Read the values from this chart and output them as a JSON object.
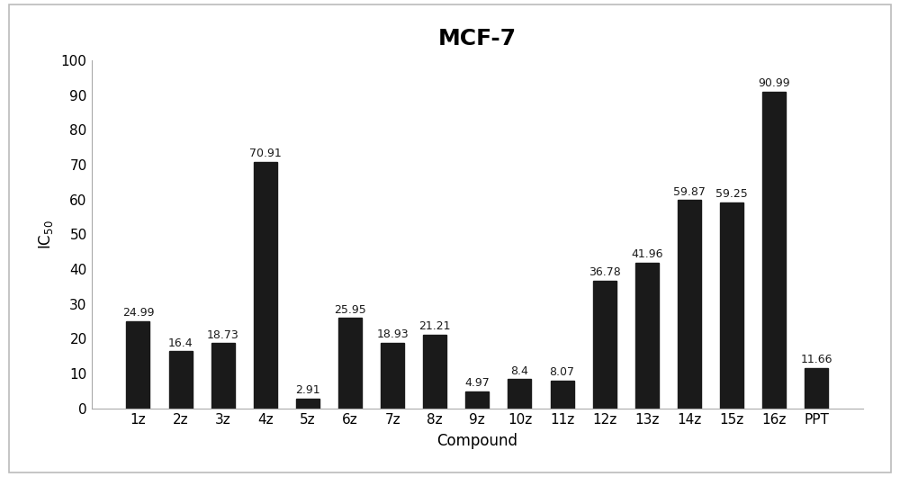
{
  "categories": [
    "1z",
    "2z",
    "3z",
    "4z",
    "5z",
    "6z",
    "7z",
    "8z",
    "9z",
    "10z",
    "11z",
    "12z",
    "13z",
    "14z",
    "15z",
    "16z",
    "PPT"
  ],
  "values": [
    24.99,
    16.4,
    18.73,
    70.91,
    2.91,
    25.95,
    18.93,
    21.21,
    4.97,
    8.4,
    8.07,
    36.78,
    41.96,
    59.87,
    59.25,
    90.99,
    11.66
  ],
  "bar_color": "#1a1a1a",
  "title": "MCF-7",
  "title_fontsize": 18,
  "title_fontweight": "bold",
  "xlabel": "Compound",
  "ylabel": "IC$_{50}$",
  "xlabel_fontsize": 12,
  "ylabel_fontsize": 12,
  "ylim": [
    0,
    100
  ],
  "yticks": [
    0,
    10,
    20,
    30,
    40,
    50,
    60,
    70,
    80,
    90,
    100
  ],
  "tick_fontsize": 11,
  "bar_label_fontsize": 9,
  "figure_bg": "#ffffff",
  "axes_bg": "#ffffff",
  "spine_color": "#aaaaaa",
  "border_color": "#bbbbbb"
}
